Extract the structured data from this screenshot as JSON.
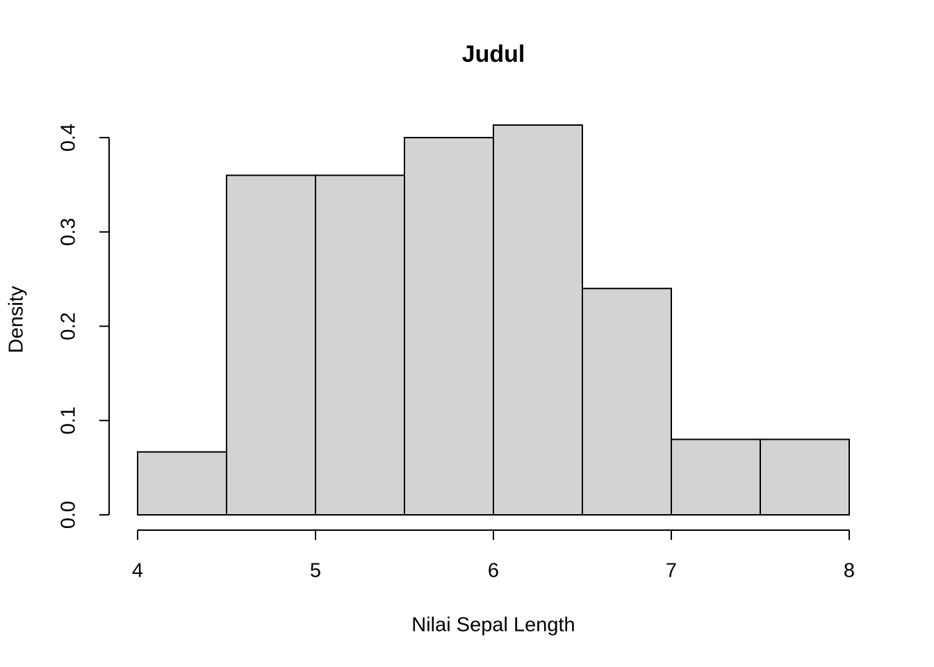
{
  "chart_data": {
    "type": "histogram",
    "title": "Judul",
    "x_label": "Nilai Sepal Length",
    "y_label": "Density",
    "bins": [
      4,
      4.5,
      5,
      5.5,
      6,
      6.5,
      7,
      7.5,
      8
    ],
    "values": [
      0.0667,
      0.36,
      0.36,
      0.4,
      0.4133,
      0.24,
      0.08,
      0.08
    ],
    "color": "#d3d3d3",
    "xlim": [
      4,
      8
    ],
    "xticks": [
      4,
      5,
      6,
      7,
      8
    ],
    "ylim": [
      0,
      0.4133
    ],
    "yticks": [
      {
        "value": 0,
        "label": "0.0"
      },
      0.1,
      0.2,
      0.3,
      0.4
    ]
  }
}
